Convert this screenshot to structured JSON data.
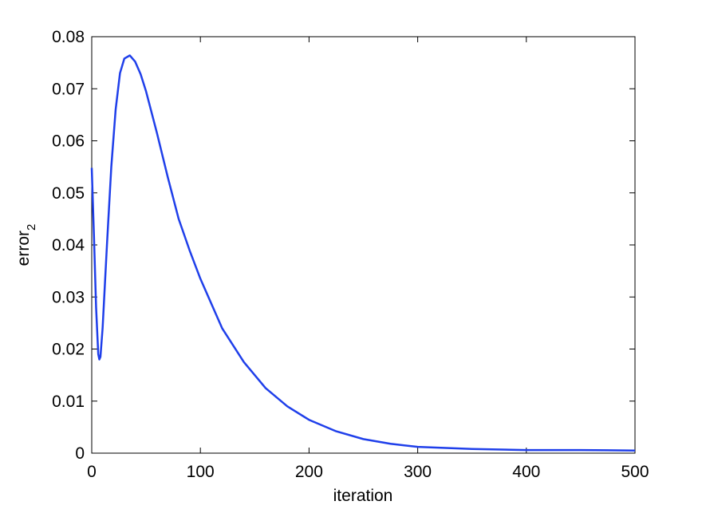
{
  "chart_data": {
    "type": "line",
    "xlabel": "iteration",
    "ylabel": "error",
    "ylabel_subscript": "2",
    "x": [
      0,
      2,
      4,
      6,
      7,
      8,
      10,
      14,
      18,
      22,
      26,
      30,
      35,
      40,
      45,
      50,
      60,
      70,
      80,
      90,
      100,
      120,
      140,
      160,
      180,
      200,
      225,
      250,
      275,
      300,
      350,
      400,
      450,
      500
    ],
    "series": [
      {
        "color": "#1f3fea",
        "values": [
          0.0548,
          0.042,
          0.028,
          0.019,
          0.018,
          0.0185,
          0.024,
          0.04,
          0.055,
          0.066,
          0.073,
          0.0758,
          0.0764,
          0.0752,
          0.0728,
          0.0695,
          0.0615,
          0.053,
          0.045,
          0.039,
          0.0335,
          0.024,
          0.0175,
          0.0125,
          0.009,
          0.0064,
          0.0042,
          0.0027,
          0.0018,
          0.0012,
          0.0008,
          0.0006,
          0.0006,
          0.0005
        ]
      }
    ],
    "xlim": [
      0,
      500
    ],
    "xticks": [
      0,
      100,
      200,
      300,
      400,
      500
    ],
    "ylim": [
      0,
      0.08
    ],
    "yticks": [
      0,
      0.01,
      0.02,
      0.03,
      0.04,
      0.05,
      0.06,
      0.07,
      0.08
    ],
    "grid": false
  }
}
